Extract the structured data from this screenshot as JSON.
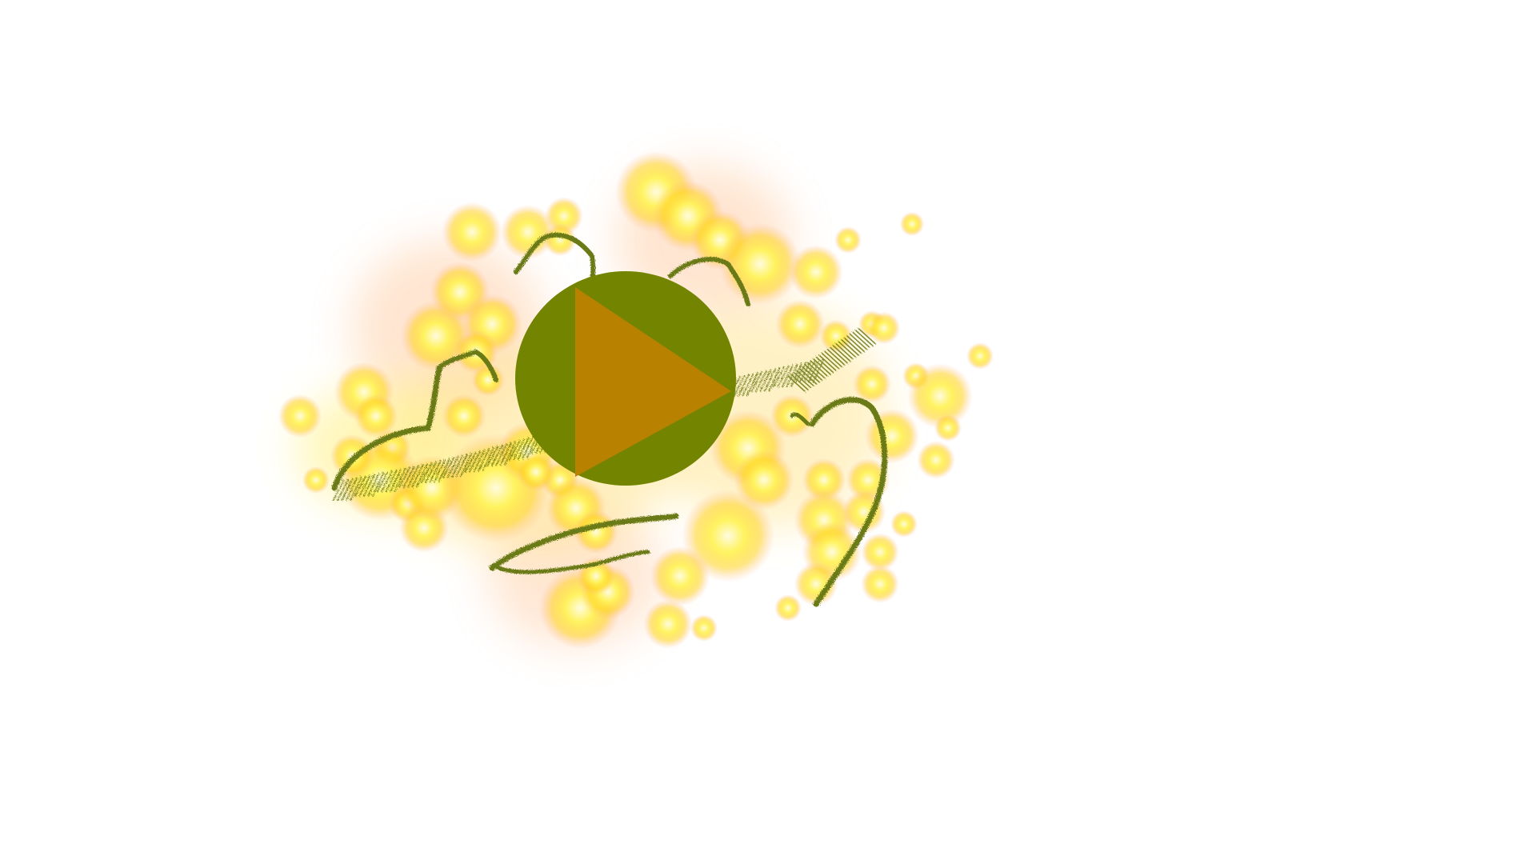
{
  "colors": {
    "background": "#ffffff",
    "glow_core": "#fff35a",
    "glow_mid": "#ffd21e",
    "glow_halo": "#ffb48a",
    "squiggle": "#6b7a12",
    "button_circle": "#738400",
    "button_triangle": "#b88100"
  },
  "icons": {
    "play_button": "play-icon",
    "decoration": "sparkle-glow-squiggles"
  }
}
